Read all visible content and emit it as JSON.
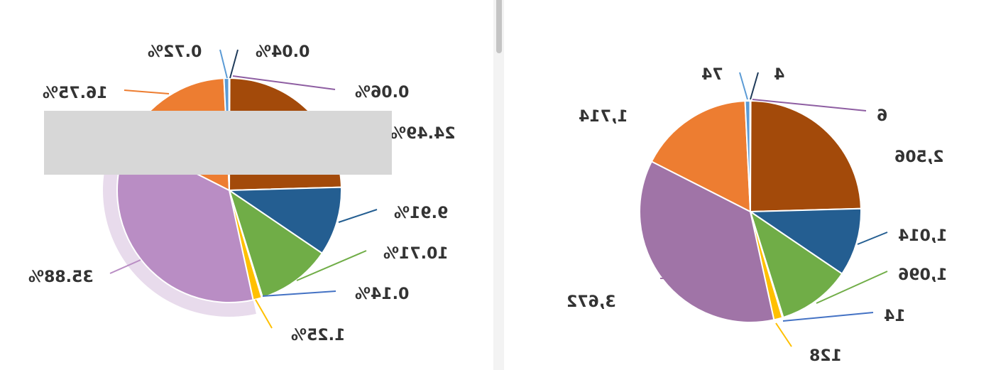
{
  "chart_data": [
    {
      "type": "pie",
      "mirrored": true,
      "value_format": "percent",
      "slices": [
        {
          "label": "0.06%",
          "value": 0.06,
          "color": "#8e5ea2"
        },
        {
          "label": "24.49%",
          "value": 24.49,
          "color": "#a34a0a"
        },
        {
          "label": "9.91%",
          "value": 9.91,
          "color": "#245e91"
        },
        {
          "label": "10.71%",
          "value": 10.71,
          "color": "#70ad47"
        },
        {
          "label": "0.14%",
          "value": 0.14,
          "color": "#4472c4"
        },
        {
          "label": "1.25%",
          "value": 1.25,
          "color": "#ffc000"
        },
        {
          "label": "35.88%",
          "value": 35.88,
          "color": "#b98dc4",
          "highlighted": true
        },
        {
          "label": "16.75%",
          "value": 16.75,
          "color": "#ed7d31"
        },
        {
          "label": "0.72%",
          "value": 0.72,
          "color": "#5b9bd5"
        },
        {
          "label": "0.04%",
          "value": 0.04,
          "color": "#1f3b5a"
        }
      ],
      "tooltip_visible": true
    },
    {
      "type": "pie",
      "mirrored": true,
      "value_format": "count",
      "slices": [
        {
          "label": "6",
          "value": 6,
          "color": "#8e5ea2"
        },
        {
          "label": "2,506",
          "value": 2506,
          "color": "#a34a0a"
        },
        {
          "label": "1,014",
          "value": 1014,
          "color": "#245e91"
        },
        {
          "label": "1,096",
          "value": 1096,
          "color": "#70ad47"
        },
        {
          "label": "14",
          "value": 14,
          "color": "#4472c4"
        },
        {
          "label": "128",
          "value": 128,
          "color": "#ffc000"
        },
        {
          "label": "3,672",
          "value": 3672,
          "color": "#a074a7"
        },
        {
          "label": "1,714",
          "value": 1714,
          "color": "#ed7d31"
        },
        {
          "label": "74",
          "value": 74,
          "color": "#5b9bd5"
        },
        {
          "label": "4",
          "value": 4,
          "color": "#1f3b5a"
        }
      ]
    }
  ]
}
